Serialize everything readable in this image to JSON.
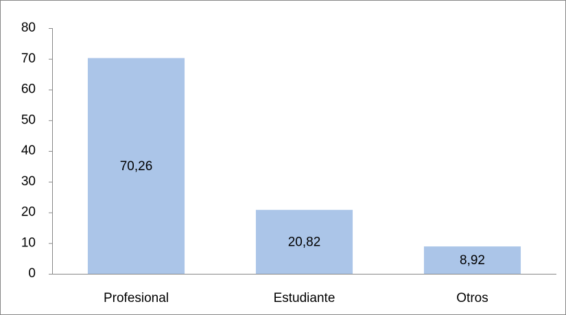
{
  "chart_data": {
    "type": "bar",
    "categories": [
      "Profesional",
      "Estudiante",
      "Otros"
    ],
    "values": [
      70.26,
      20.82,
      8.92
    ],
    "value_labels": [
      "70,26",
      "20,82",
      "8,92"
    ],
    "color": "#abc5e8",
    "ylim": [
      0,
      80
    ],
    "yticks": [
      0,
      10,
      20,
      30,
      40,
      50,
      60,
      70,
      80
    ],
    "grid": false
  }
}
